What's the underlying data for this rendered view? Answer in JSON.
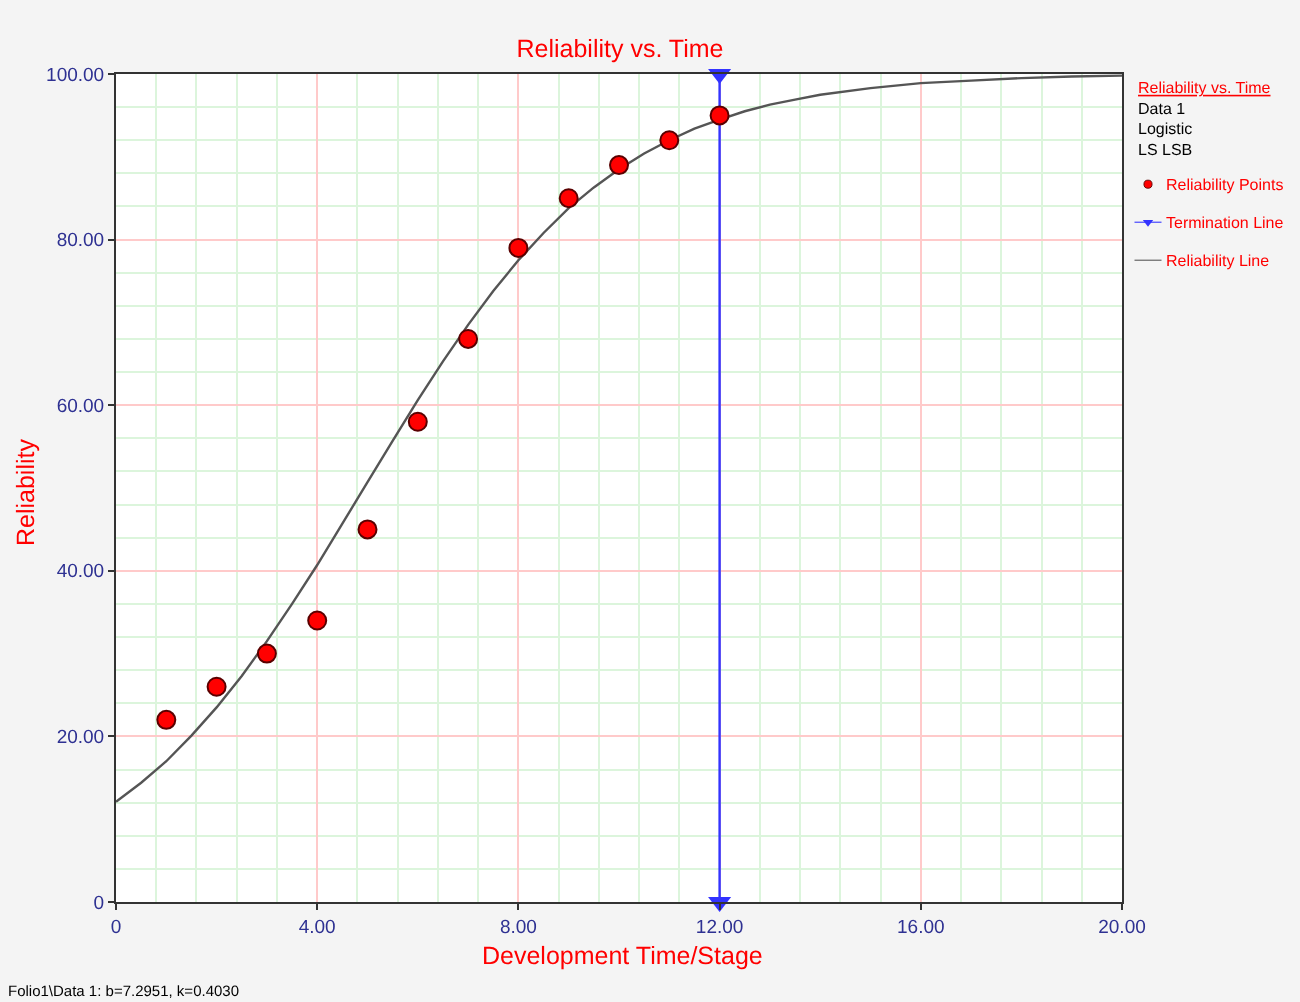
{
  "chart_data": {
    "type": "scatter",
    "title": "Reliability vs. Time",
    "xlabel": "Development Time/Stage",
    "ylabel": "Reliability",
    "legend_title": "Reliability vs. Time\nData 1\nLogistic\nLS LSB",
    "annotations": [
      "Folio1\\Data 1: b=7.2951, k=0.4030"
    ],
    "xlim": [
      0,
      20
    ],
    "xticks": [
      {
        "value": 0,
        "label": "0"
      },
      {
        "value": 4,
        "label": "4.00"
      },
      {
        "value": 8,
        "label": "8.00"
      },
      {
        "value": 12,
        "label": "12.00"
      },
      {
        "value": 16,
        "label": "16.00"
      },
      {
        "value": 20,
        "label": "20.00"
      }
    ],
    "ylim": [
      0,
      100
    ],
    "yticks": [
      {
        "value": 0,
        "label": "0"
      },
      {
        "value": 20,
        "label": "20.00"
      },
      {
        "value": 40,
        "label": "40.00"
      },
      {
        "value": 60,
        "label": "60.00"
      },
      {
        "value": 80,
        "label": "80.00"
      },
      {
        "value": 100,
        "label": "100.00"
      }
    ],
    "grid": true,
    "legend": "top right",
    "series": [
      {
        "name": "Reliability Points",
        "color": "#ff0000",
        "marker": "circle",
        "x": [
          1,
          2,
          3,
          4,
          5,
          6,
          7,
          8,
          9,
          10,
          11,
          12
        ],
        "values": [
          22,
          26,
          30,
          34,
          45,
          58,
          68,
          79,
          85,
          89,
          92,
          95
        ]
      },
      {
        "name": "Termination Line",
        "type": "line",
        "color": "#3333ff",
        "marker": "triangle",
        "x": [
          12,
          12
        ],
        "values": [
          100,
          0
        ]
      },
      {
        "name": "Reliability Line",
        "type": "line",
        "color": "#555555",
        "marker": "none",
        "x": [
          0,
          0.5,
          1,
          1.5,
          2,
          2.5,
          3,
          3.5,
          4,
          4.5,
          5,
          5.5,
          6,
          6.5,
          7,
          7.5,
          8,
          8.5,
          9,
          9.5,
          10,
          10.5,
          11,
          11.5,
          12,
          12.5,
          13,
          13.5,
          14,
          15,
          16,
          17,
          18,
          19,
          20
        ],
        "values": [
          12.1,
          14.4,
          17.0,
          20.1,
          23.5,
          27.3,
          31.5,
          36.0,
          40.7,
          45.7,
          50.7,
          55.7,
          60.6,
          65.3,
          69.7,
          73.8,
          77.5,
          80.8,
          83.8,
          86.3,
          88.5,
          90.4,
          92.0,
          93.4,
          94.5,
          95.5,
          96.3,
          96.9,
          97.5,
          98.3,
          98.9,
          99.2,
          99.5,
          99.7,
          99.8
        ]
      }
    ]
  }
}
